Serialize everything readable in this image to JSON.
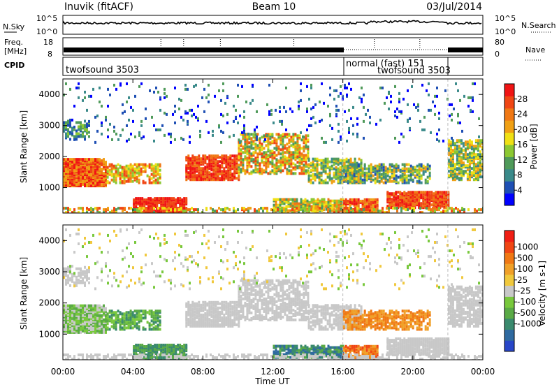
{
  "header": {
    "left": "Inuvik (fitACF)",
    "center": "Beam 10",
    "right": "03/Jul/2014"
  },
  "top_panels": {
    "nsky": {
      "label": "N.Sky",
      "y_ticks": [
        "10^5",
        "10^0"
      ],
      "right_label": "N.Search",
      "right_ticks": [
        "10^5",
        "10^0"
      ]
    },
    "freq": {
      "label_line1": "Freq.",
      "label_line2": "[MHz]",
      "y_ticks": [
        "18",
        "8"
      ],
      "right_label": "Nave",
      "right_ticks": [
        "80",
        "0"
      ]
    },
    "cpid": {
      "label": "CPID",
      "segments": [
        {
          "text": "twofsound 3503",
          "start_hour": 0,
          "end_hour": 16
        },
        {
          "text": "normal (fast) 151",
          "start_hour": 16,
          "end_hour": 22
        },
        {
          "text": "twofsound 3503",
          "start_hour": 16,
          "end_hour": 22
        }
      ]
    }
  },
  "chart_data": [
    {
      "type": "heatmap",
      "name": "power",
      "xlabel": "",
      "ylabel": "Slant Range [km]",
      "x_ticks": [
        "00:00",
        "04:00",
        "08:00",
        "12:00",
        "16:00",
        "20:00",
        "00:00"
      ],
      "xlim_hours": [
        0,
        24
      ],
      "y_ticks": [
        1000,
        2000,
        3000,
        4000
      ],
      "ylim_km": [
        180,
        4500
      ],
      "colorbar": {
        "label": "Power [dB]",
        "ticks": [
          4,
          8,
          12,
          16,
          20,
          24,
          28
        ],
        "colors": [
          "#0000ff",
          "#1e4fb4",
          "#3a8a8a",
          "#4f9a5a",
          "#8cc832",
          "#f0e014",
          "#f0a014",
          "#f07814",
          "#f04614",
          "#f01414"
        ]
      }
    },
    {
      "type": "heatmap",
      "name": "velocity",
      "xlabel": "Time UT",
      "ylabel": "Slant Range [km]",
      "x_ticks": [
        "00:00",
        "04:00",
        "08:00",
        "12:00",
        "16:00",
        "20:00",
        "00:00"
      ],
      "xlim_hours": [
        0,
        24
      ],
      "y_ticks": [
        1000,
        2000,
        3000,
        4000
      ],
      "ylim_km": [
        180,
        4500
      ],
      "colorbar": {
        "label": "Velocity [m s-1]",
        "ticks": [
          "1000",
          "500",
          "100",
          "25",
          "-25",
          "-100",
          "-500",
          "-1000"
        ],
        "colors": [
          "#2846c8",
          "#2f6aa0",
          "#3a8a6e",
          "#5aaa46",
          "#78c83c",
          "#c8c8c8",
          "#f0c83c",
          "#f0a028",
          "#f07814",
          "#f04614",
          "#f01e14"
        ]
      }
    }
  ]
}
